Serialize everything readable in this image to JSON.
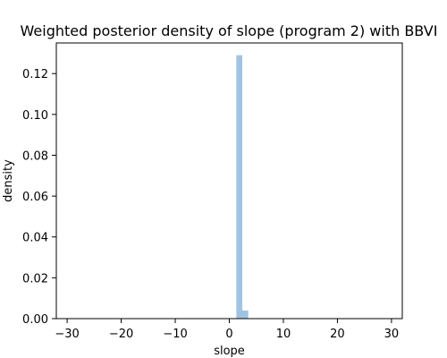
{
  "chart_data": {
    "type": "bar",
    "title": "Weighted posterior density of slope (program 2) with BBVI",
    "xlabel": "slope",
    "ylabel": "density",
    "xlim": [
      -32,
      32
    ],
    "ylim": [
      0,
      0.135
    ],
    "xticks": [
      -30,
      -20,
      -10,
      0,
      10,
      20,
      30
    ],
    "xtick_labels": [
      "−30",
      "−20",
      "−10",
      "0",
      "10",
      "20",
      "30"
    ],
    "yticks": [
      0.0,
      0.02,
      0.04,
      0.06,
      0.08,
      0.1,
      0.12
    ],
    "ytick_labels": [
      "0.00",
      "0.02",
      "0.04",
      "0.06",
      "0.08",
      "0.10",
      "0.12"
    ],
    "grid": false,
    "bar_color": "#a0c4e0",
    "bins": [
      {
        "x0": 1.3,
        "x1": 2.4,
        "value": 0.129
      },
      {
        "x0": 2.4,
        "x1": 3.5,
        "value": 0.004
      }
    ]
  }
}
